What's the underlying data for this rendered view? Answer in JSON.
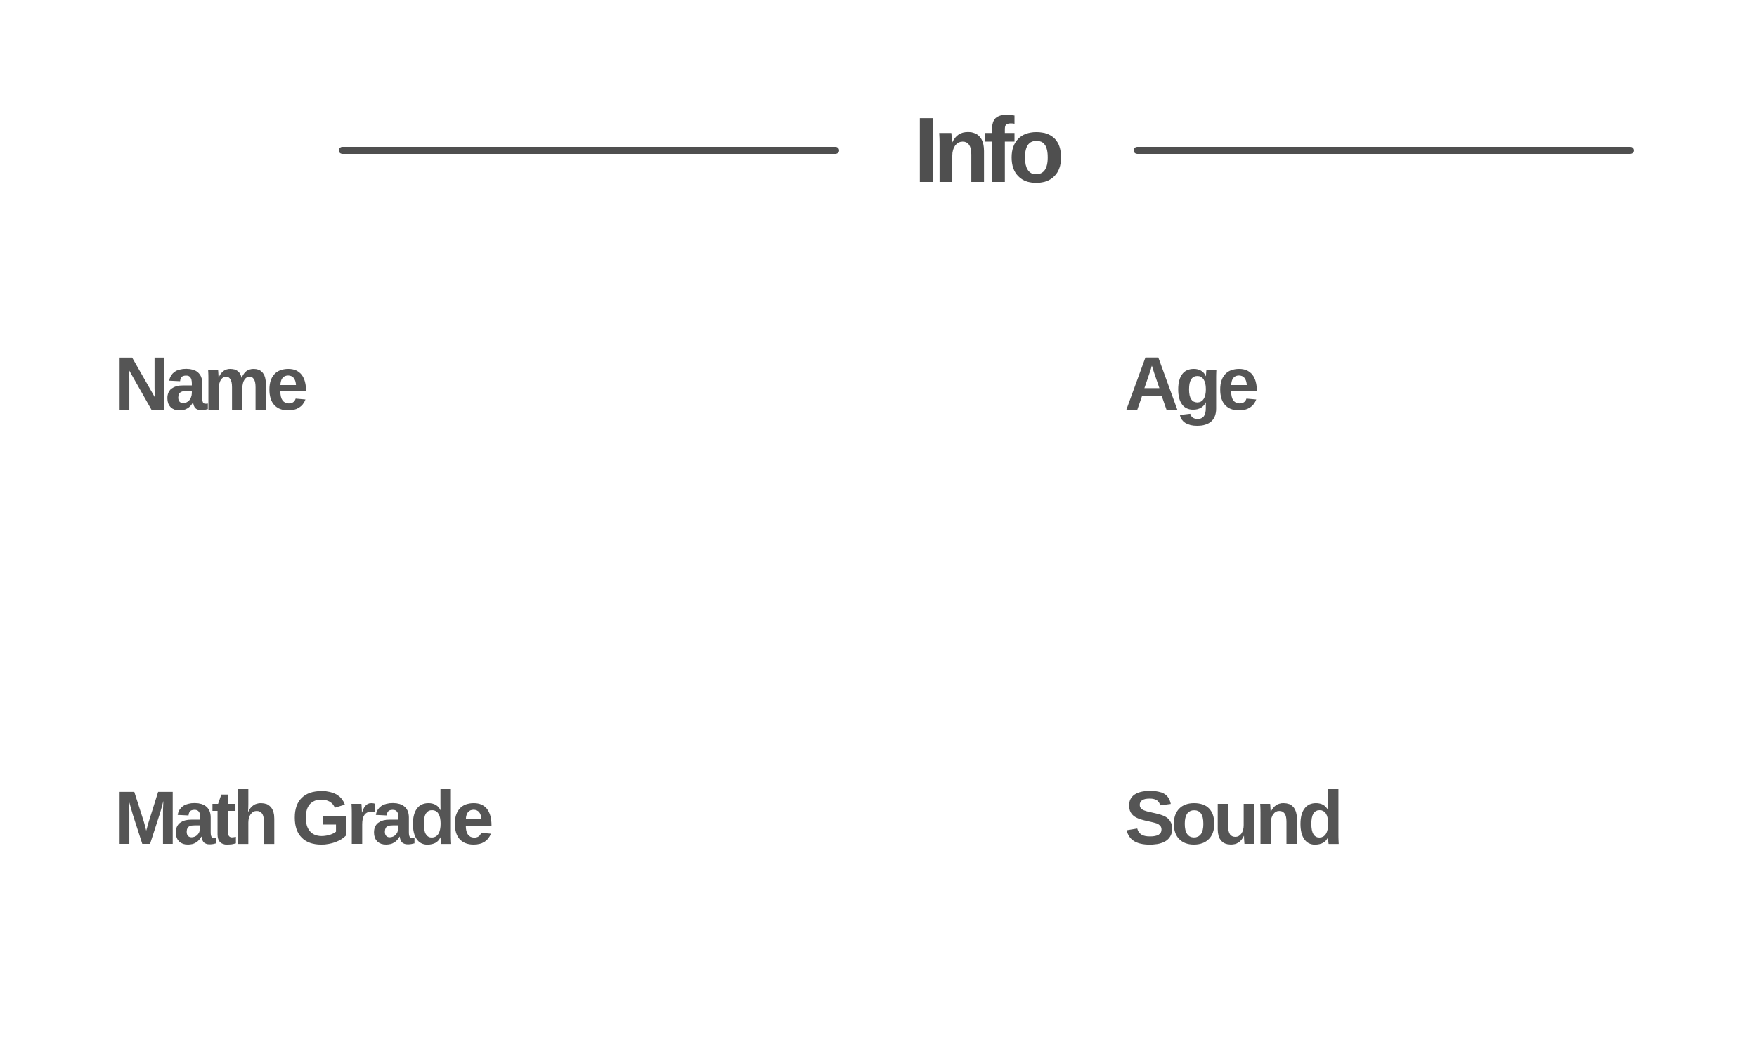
{
  "header": {
    "title": "Info"
  },
  "fields": {
    "name_label": "Name",
    "age_label": "Age",
    "math_grade_label": "Math Grade",
    "sound_label": "Sound"
  },
  "colors": {
    "text": "#555555",
    "divider": "#4f4f4f",
    "background": "#ffffff"
  }
}
